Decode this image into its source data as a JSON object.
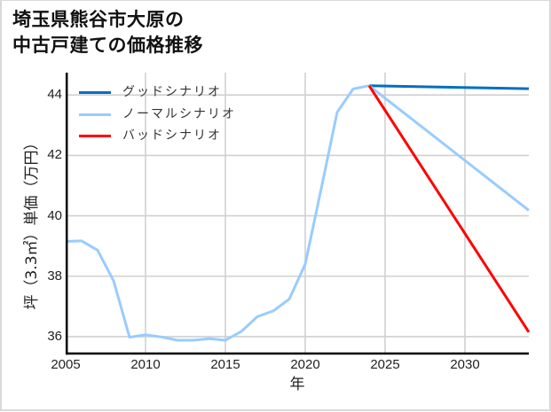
{
  "title": {
    "line1": "埼玉県熊谷市大原の",
    "line2": "中古戸建ての価格推移"
  },
  "chart_data": {
    "type": "line",
    "title": "埼玉県熊谷市大原の中古戸建ての価格推移",
    "xlabel": "年",
    "ylabel": "坪（3.3㎡）単価（万円）",
    "xlim": [
      2005,
      2034
    ],
    "ylim": [
      35.44,
      44.74
    ],
    "xticks": [
      2005,
      2010,
      2015,
      2020,
      2025,
      2030
    ],
    "yticks": [
      36,
      38,
      40,
      42,
      44
    ],
    "grid": true,
    "legend_position": "upper left",
    "series": [
      {
        "name": "グッドシナリオ",
        "color": "#0070C0",
        "x": [
          2024,
          2034
        ],
        "values": [
          44.31,
          44.21
        ]
      },
      {
        "name": "ノーマルシナリオ",
        "color": "#99CCFF",
        "x": [
          2005,
          2006,
          2007,
          2008,
          2009,
          2010,
          2011,
          2012,
          2013,
          2014,
          2015,
          2016,
          2017,
          2018,
          2019,
          2020,
          2021,
          2022,
          2023,
          2024,
          2034
        ],
        "values": [
          39.15,
          39.17,
          38.86,
          37.85,
          35.98,
          36.06,
          35.99,
          35.88,
          35.88,
          35.93,
          35.88,
          36.17,
          36.66,
          36.85,
          37.24,
          38.4,
          40.9,
          43.43,
          44.2,
          44.31,
          40.18
        ]
      },
      {
        "name": "バッドシナリオ",
        "color": "#FF0000",
        "x": [
          2024,
          2034
        ],
        "values": [
          44.31,
          36.15
        ]
      }
    ]
  }
}
